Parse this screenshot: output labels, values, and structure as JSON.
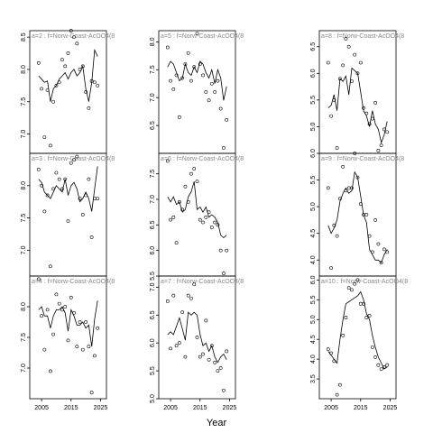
{
  "chart_data": {
    "type": "scatter",
    "layout": "3x3 grid, columns filled top-to-bottom",
    "xlabel": "Year",
    "xlim": [
      2001,
      2027
    ],
    "xticks": [
      2005,
      2015,
      2025
    ],
    "grid": false,
    "legend": "none",
    "panels": [
      {
        "title": "a=2 : f=Norw-Coast-AcOO4(8",
        "ylim": [
          6.7,
          8.6
        ],
        "yticks": [
          7.0,
          7.5,
          8.0,
          8.5
        ],
        "x": [
          2004,
          2005,
          2006,
          2007,
          2008,
          2009,
          2010,
          2011,
          2012,
          2013,
          2014,
          2015,
          2016,
          2017,
          2018,
          2019,
          2020,
          2021,
          2022,
          2023,
          2024
        ],
        "points": [
          8.1,
          7.7,
          6.95,
          7.68,
          6.82,
          7.5,
          7.75,
          7.8,
          8.15,
          8.05,
          8.25,
          8.6,
          8.5,
          8.4,
          8.0,
          8.05,
          7.65,
          7.4,
          7.82,
          7.8,
          7.75
        ],
        "fit": [
          7.9,
          7.85,
          7.8,
          7.82,
          7.5,
          7.7,
          7.75,
          7.85,
          7.9,
          7.95,
          7.85,
          7.95,
          8.0,
          7.9,
          7.95,
          8.05,
          7.7,
          7.5,
          7.8,
          8.3,
          8.2
        ]
      },
      {
        "title": "a=3 : f=Norw-Coast-AcOO4(8",
        "ylim": [
          6.6,
          8.5
        ],
        "yticks": [
          7.0,
          7.5,
          8.0
        ],
        "x": [
          2004,
          2005,
          2006,
          2007,
          2008,
          2009,
          2010,
          2011,
          2012,
          2013,
          2014,
          2015,
          2016,
          2017,
          2018,
          2019,
          2020,
          2021,
          2022,
          2023,
          2024
        ],
        "points": [
          8.25,
          8.0,
          7.6,
          7.85,
          6.75,
          7.95,
          8.2,
          8.1,
          7.95,
          8.1,
          7.45,
          8.35,
          8.4,
          8.45,
          7.8,
          7.55,
          7.85,
          8.1,
          7.2,
          7.8,
          7.8
        ],
        "fit": [
          8.1,
          8.05,
          7.9,
          7.85,
          7.8,
          7.9,
          8.0,
          7.95,
          7.9,
          8.1,
          7.85,
          8.0,
          8.05,
          7.95,
          7.75,
          7.8,
          7.9,
          7.8,
          7.6,
          7.95,
          8.3
        ]
      },
      {
        "title": "a=4 : f=Norw-Coast-AcOO4(8",
        "ylim": [
          6.5,
          8.5
        ],
        "yticks": [
          7.0,
          7.5,
          8.0
        ],
        "x": [
          2004,
          2005,
          2006,
          2007,
          2008,
          2009,
          2010,
          2011,
          2012,
          2013,
          2014,
          2015,
          2016,
          2017,
          2018,
          2019,
          2020,
          2021,
          2022,
          2023,
          2024
        ],
        "points": [
          8.45,
          7.85,
          7.3,
          7.95,
          6.95,
          7.55,
          8.2,
          8.05,
          7.95,
          8.0,
          7.45,
          8.15,
          7.9,
          7.35,
          7.75,
          7.3,
          7.75,
          7.35,
          6.6,
          7.2,
          7.65
        ],
        "fit": [
          7.95,
          8.0,
          7.85,
          7.85,
          7.65,
          7.85,
          7.95,
          7.95,
          8.0,
          7.9,
          7.6,
          7.95,
          7.85,
          7.7,
          7.7,
          7.75,
          7.65,
          7.7,
          7.35,
          7.8,
          8.1
        ]
      },
      {
        "title": "a=5 : f=Norw-Coast-AcOO4(8",
        "ylim": [
          6.0,
          8.2
        ],
        "yticks": [
          6.5,
          7.0,
          7.5,
          8.0
        ],
        "x": [
          2004,
          2005,
          2006,
          2007,
          2008,
          2009,
          2010,
          2011,
          2012,
          2013,
          2014,
          2015,
          2016,
          2017,
          2018,
          2019,
          2020,
          2021,
          2022,
          2023,
          2024
        ],
        "points": [
          7.9,
          7.3,
          7.15,
          7.4,
          6.65,
          7.35,
          7.6,
          7.8,
          7.3,
          7.55,
          8.15,
          7.6,
          7.4,
          7.1,
          6.95,
          7.25,
          7.1,
          7.3,
          6.8,
          6.1,
          6.6
        ],
        "fit": [
          7.55,
          7.65,
          7.6,
          7.45,
          7.3,
          7.35,
          7.6,
          7.45,
          7.4,
          7.55,
          7.45,
          7.65,
          7.6,
          7.45,
          7.35,
          7.5,
          7.25,
          7.5,
          7.35,
          6.95,
          7.2
        ]
      },
      {
        "title": "a=6 : f=Norw-Coast-AcOO4(8",
        "ylim": [
          5.5,
          7.9
        ],
        "yticks": [
          5.5,
          6.0,
          6.5,
          7.0,
          7.5
        ],
        "x": [
          2004,
          2005,
          2006,
          2007,
          2008,
          2009,
          2010,
          2011,
          2012,
          2013,
          2014,
          2015,
          2016,
          2017,
          2018,
          2019,
          2020,
          2021,
          2022,
          2023,
          2024
        ],
        "points": [
          7.75,
          6.6,
          6.65,
          6.15,
          6.95,
          6.8,
          7.25,
          6.95,
          7.5,
          7.6,
          7.35,
          6.6,
          6.55,
          6.65,
          6.75,
          6.45,
          6.55,
          6.5,
          6.0,
          5.55,
          6.0
        ],
        "fit": [
          7.05,
          6.95,
          7.05,
          6.9,
          6.95,
          6.75,
          6.8,
          7.05,
          7.15,
          7.35,
          6.8,
          6.85,
          6.75,
          6.85,
          6.65,
          6.7,
          6.65,
          6.55,
          6.3,
          6.25,
          6.3
        ]
      },
      {
        "title": "a=7 : f=Norw-Coast-AcOO4(8",
        "ylim": [
          5.0,
          7.2
        ],
        "yticks": [
          5.0,
          5.5,
          6.0,
          6.5,
          7.0
        ],
        "x": [
          2004,
          2005,
          2006,
          2007,
          2008,
          2009,
          2010,
          2011,
          2012,
          2013,
          2014,
          2015,
          2016,
          2017,
          2018,
          2019,
          2020,
          2021,
          2022,
          2023,
          2024
        ],
        "points": [
          6.75,
          5.9,
          6.85,
          5.95,
          6.0,
          6.55,
          5.75,
          6.85,
          6.8,
          7.05,
          6.1,
          5.75,
          5.8,
          6.4,
          5.7,
          5.95,
          5.65,
          5.5,
          5.55,
          5.15,
          5.85
        ],
        "fit": [
          6.15,
          6.2,
          6.15,
          6.3,
          6.45,
          6.25,
          6.05,
          6.55,
          6.5,
          6.55,
          6.5,
          6.15,
          5.95,
          6.0,
          5.85,
          5.95,
          5.75,
          5.65,
          5.75,
          5.8,
          5.7
        ]
      },
      {
        "title": "a=8 : f=Norw-Coast-AcOO4(8",
        "ylim": [
          4.5,
          6.8
        ],
        "yticks": [
          5.0,
          5.5,
          6.0,
          6.5
        ],
        "x": [
          2004,
          2005,
          2006,
          2007,
          2008,
          2009,
          2010,
          2011,
          2012,
          2013,
          2014,
          2015,
          2016,
          2017,
          2018,
          2019,
          2020,
          2021,
          2022,
          2023,
          2024
        ],
        "points": [
          6.2,
          5.2,
          5.5,
          4.6,
          5.9,
          6.15,
          6.65,
          6.5,
          5.85,
          6.35,
          6.0,
          6.2,
          5.35,
          5.25,
          5.05,
          5.15,
          5.45,
          4.55,
          4.65,
          4.95,
          4.9
        ],
        "fit": [
          5.35,
          5.4,
          5.6,
          5.3,
          5.9,
          5.85,
          5.95,
          5.6,
          6.1,
          6.05,
          6.0,
          5.65,
          5.3,
          5.2,
          5.0,
          5.3,
          5.05,
          4.95,
          4.7,
          4.85,
          5.1
        ]
      },
      {
        "title": "a=9 : f=Norw-Coast-AcOO4(8",
        "ylim": [
          3.7,
          6.0
        ],
        "yticks": [
          4.0,
          4.5,
          5.0,
          5.5,
          6.0
        ],
        "x": [
          2004,
          2005,
          2006,
          2007,
          2008,
          2009,
          2010,
          2011,
          2012,
          2013,
          2014,
          2015,
          2016,
          2017,
          2018,
          2019,
          2020,
          2021,
          2022,
          2023,
          2024
        ],
        "points": [
          5.35,
          3.85,
          4.65,
          4.45,
          5.15,
          5.75,
          5.3,
          5.35,
          5.35,
          6.0,
          5.55,
          5.05,
          4.85,
          4.85,
          4.45,
          4.15,
          4.75,
          4.3,
          3.95,
          4.2,
          4.15
        ],
        "fit": [
          4.65,
          4.5,
          4.6,
          4.75,
          5.1,
          5.25,
          5.35,
          5.25,
          5.3,
          5.65,
          5.55,
          5.2,
          4.85,
          4.7,
          4.2,
          4.1,
          4.0,
          4.0,
          3.95,
          4.1,
          4.2
        ]
      },
      {
        "title": "a=10 : f=Norw-Coast-AcOO4(8",
        "ylim": [
          3.0,
          6.1
        ],
        "yticks": [
          3.5,
          4.0,
          4.5,
          5.0,
          5.5,
          6.0
        ],
        "x": [
          2004,
          2005,
          2006,
          2007,
          2008,
          2009,
          2010,
          2011,
          2012,
          2013,
          2014,
          2015,
          2016,
          2017,
          2018,
          2019,
          2020,
          2021,
          2022,
          2023,
          2024
        ],
        "points": [
          4.25,
          4.15,
          3.95,
          3.1,
          3.35,
          4.6,
          5.05,
          5.8,
          5.75,
          5.9,
          6.0,
          5.4,
          5.4,
          5.05,
          5.1,
          4.3,
          4.05,
          3.85,
          3.75,
          3.8,
          3.85
        ],
        "fit": [
          4.2,
          4.1,
          4.0,
          3.9,
          4.5,
          5.0,
          5.4,
          5.45,
          5.5,
          5.55,
          5.6,
          5.7,
          5.5,
          5.15,
          5.0,
          4.6,
          4.3,
          4.05,
          3.9,
          3.75,
          3.8
        ]
      }
    ]
  }
}
